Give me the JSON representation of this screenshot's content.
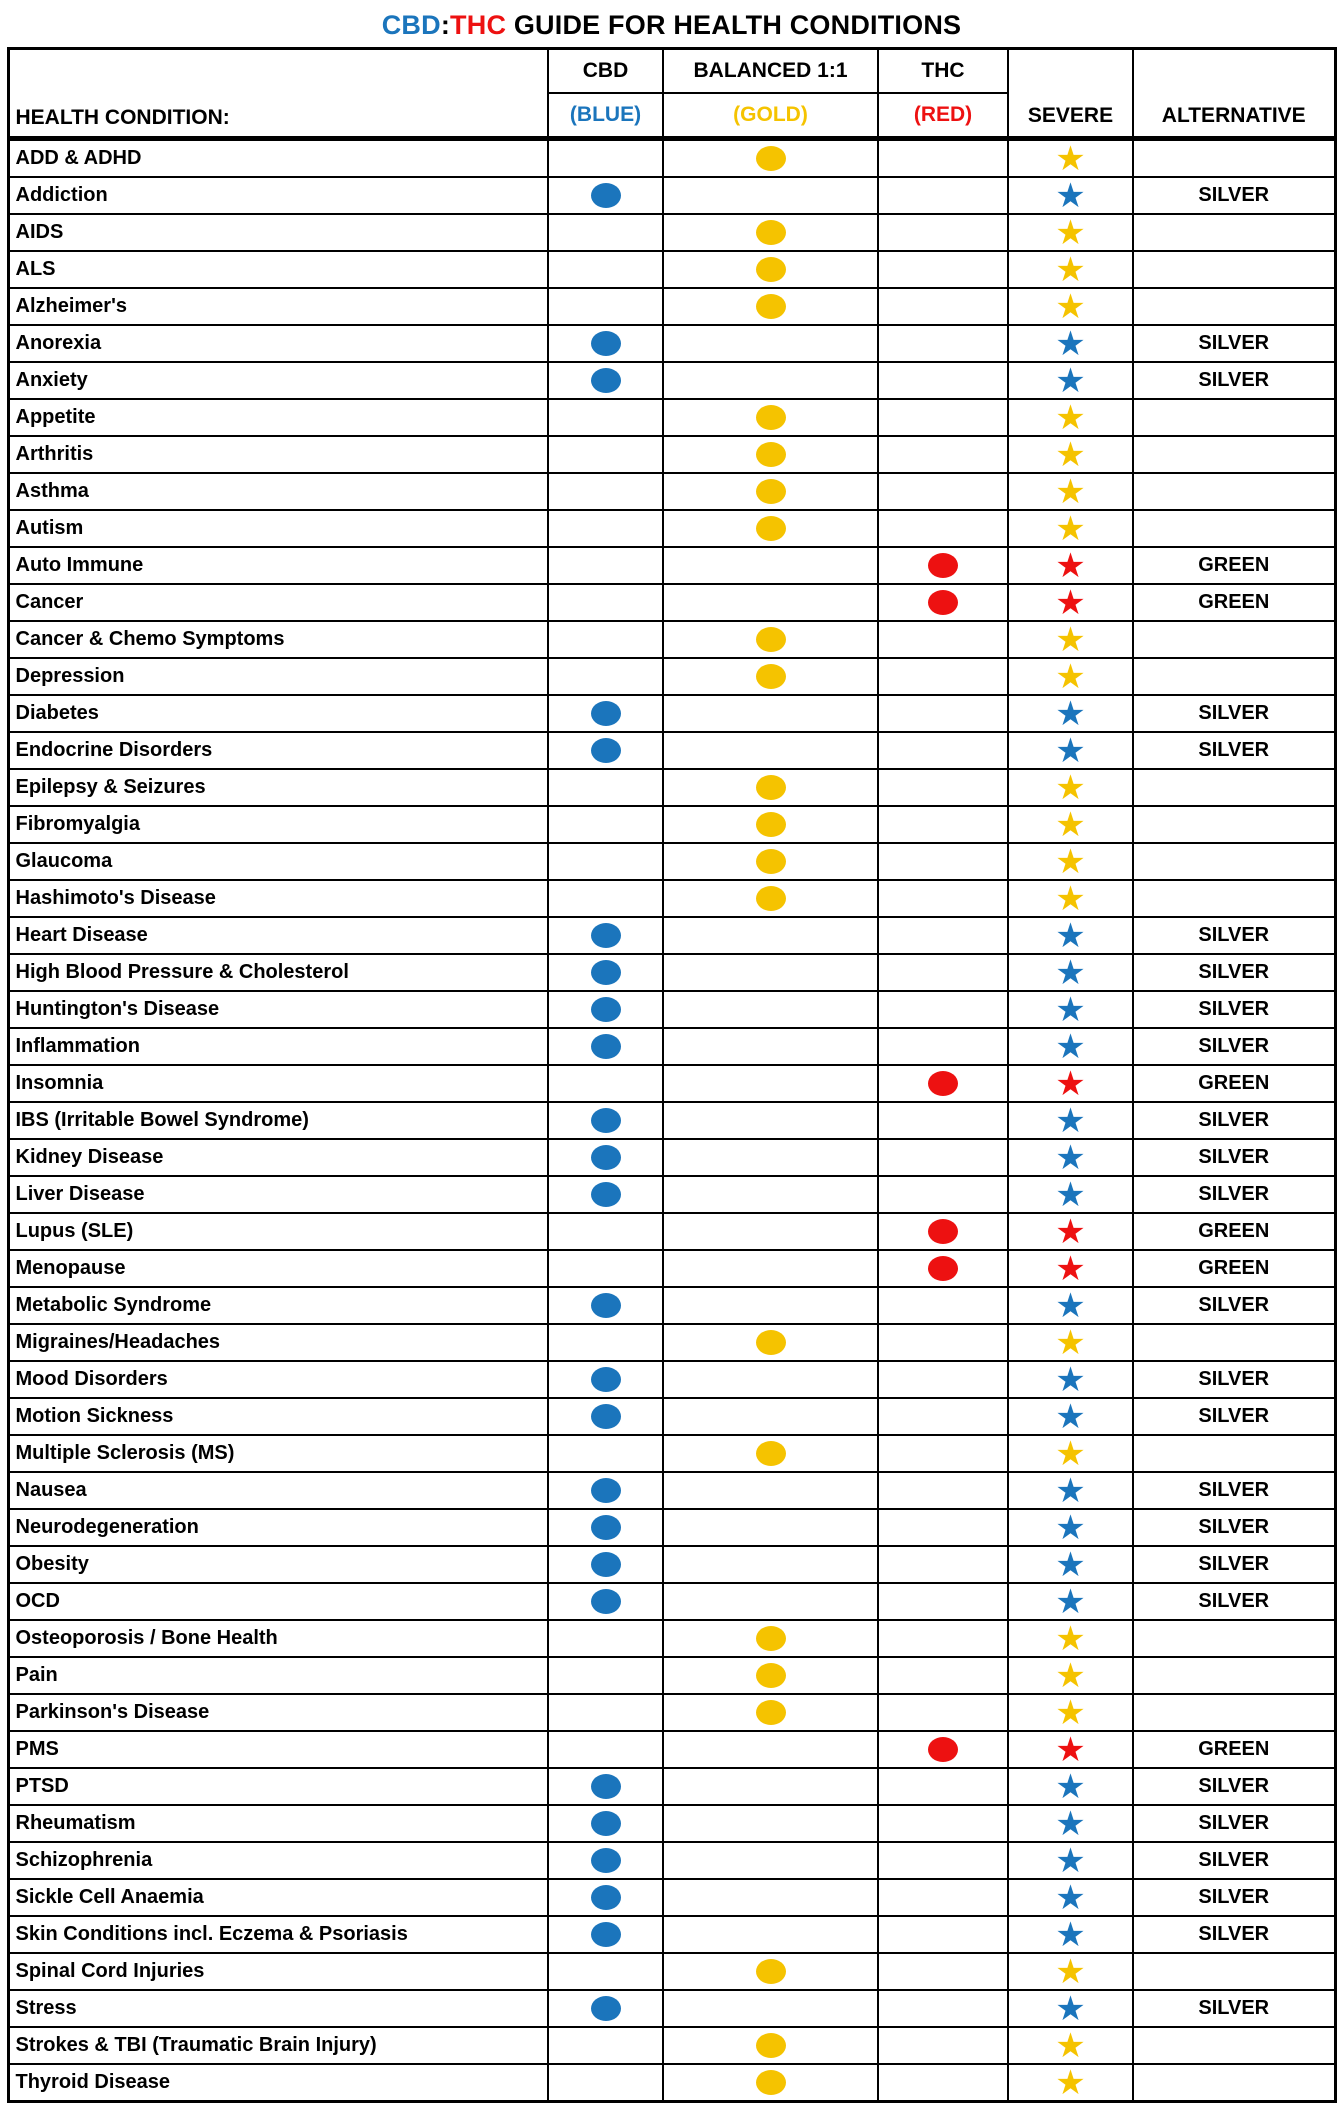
{
  "title": {
    "cbd": "CBD",
    "colon": ":",
    "thc": "THC",
    "rest": " GUIDE FOR HEALTH CONDITIONS"
  },
  "colors": {
    "blue": "#1B75BC",
    "gold": "#F5C300",
    "red": "#ED1111",
    "black": "#000000"
  },
  "icons": {
    "dot": "filled-ellipse",
    "star_glyph": "★"
  },
  "header": {
    "condition": "HEALTH CONDITION:",
    "cbd_line1": "CBD",
    "cbd_line2": "(BLUE)",
    "balanced_line1": "BALANCED 1:1",
    "balanced_line2": "(GOLD)",
    "thc_line1": "THC",
    "thc_line2": "(RED)",
    "severe": "SEVERE",
    "alternative": "ALTERNATIVE"
  },
  "chart_data": {
    "type": "table",
    "title": "CBD:THC GUIDE FOR HEALTH CONDITIONS",
    "columns": [
      "HEALTH CONDITION:",
      "CBD (BLUE)",
      "BALANCED 1:1 (GOLD)",
      "THC (RED)",
      "SEVERE",
      "ALTERNATIVE"
    ],
    "category_to_column": {
      "blue": "CBD (BLUE)",
      "gold": "BALANCED 1:1 (GOLD)",
      "red": "THC (RED)"
    },
    "rows": [
      {
        "condition": "ADD & ADHD",
        "category": "gold",
        "alternative": ""
      },
      {
        "condition": "Addiction",
        "category": "blue",
        "alternative": "SILVER"
      },
      {
        "condition": "AIDS",
        "category": "gold",
        "alternative": ""
      },
      {
        "condition": "ALS",
        "category": "gold",
        "alternative": ""
      },
      {
        "condition": "Alzheimer's",
        "category": "gold",
        "alternative": ""
      },
      {
        "condition": "Anorexia",
        "category": "blue",
        "alternative": "SILVER"
      },
      {
        "condition": "Anxiety",
        "category": "blue",
        "alternative": "SILVER"
      },
      {
        "condition": "Appetite",
        "category": "gold",
        "alternative": ""
      },
      {
        "condition": "Arthritis",
        "category": "gold",
        "alternative": ""
      },
      {
        "condition": "Asthma",
        "category": "gold",
        "alternative": ""
      },
      {
        "condition": "Autism",
        "category": "gold",
        "alternative": ""
      },
      {
        "condition": "Auto Immune",
        "category": "red",
        "alternative": "GREEN"
      },
      {
        "condition": "Cancer",
        "category": "red",
        "alternative": "GREEN"
      },
      {
        "condition": "Cancer & Chemo Symptoms",
        "category": "gold",
        "alternative": ""
      },
      {
        "condition": "Depression",
        "category": "gold",
        "alternative": ""
      },
      {
        "condition": "Diabetes",
        "category": "blue",
        "alternative": "SILVER"
      },
      {
        "condition": "Endocrine Disorders",
        "category": "blue",
        "alternative": "SILVER"
      },
      {
        "condition": "Epilepsy & Seizures",
        "category": "gold",
        "alternative": ""
      },
      {
        "condition": "Fibromyalgia",
        "category": "gold",
        "alternative": ""
      },
      {
        "condition": "Glaucoma",
        "category": "gold",
        "alternative": ""
      },
      {
        "condition": "Hashimoto's Disease",
        "category": "gold",
        "alternative": ""
      },
      {
        "condition": "Heart Disease",
        "category": "blue",
        "alternative": "SILVER"
      },
      {
        "condition": "High Blood Pressure & Cholesterol",
        "category": "blue",
        "alternative": "SILVER"
      },
      {
        "condition": "Huntington's Disease",
        "category": "blue",
        "alternative": "SILVER"
      },
      {
        "condition": "Inflammation",
        "category": "blue",
        "alternative": "SILVER"
      },
      {
        "condition": "Insomnia",
        "category": "red",
        "alternative": "GREEN"
      },
      {
        "condition": "IBS (Irritable Bowel Syndrome)",
        "category": "blue",
        "alternative": "SILVER"
      },
      {
        "condition": "Kidney Disease",
        "category": "blue",
        "alternative": "SILVER"
      },
      {
        "condition": "Liver Disease",
        "category": "blue",
        "alternative": "SILVER"
      },
      {
        "condition": "Lupus (SLE)",
        "category": "red",
        "alternative": "GREEN"
      },
      {
        "condition": "Menopause",
        "category": "red",
        "alternative": "GREEN"
      },
      {
        "condition": "Metabolic Syndrome",
        "category": "blue",
        "alternative": "SILVER"
      },
      {
        "condition": "Migraines/Headaches",
        "category": "gold",
        "alternative": ""
      },
      {
        "condition": "Mood Disorders",
        "category": "blue",
        "alternative": "SILVER"
      },
      {
        "condition": "Motion Sickness",
        "category": "blue",
        "alternative": "SILVER"
      },
      {
        "condition": "Multiple Sclerosis (MS)",
        "category": "gold",
        "alternative": ""
      },
      {
        "condition": "Nausea",
        "category": "blue",
        "alternative": "SILVER"
      },
      {
        "condition": "Neurodegeneration",
        "category": "blue",
        "alternative": "SILVER"
      },
      {
        "condition": "Obesity",
        "category": "blue",
        "alternative": "SILVER"
      },
      {
        "condition": "OCD",
        "category": "blue",
        "alternative": "SILVER"
      },
      {
        "condition": "Osteoporosis / Bone Health",
        "category": "gold",
        "alternative": ""
      },
      {
        "condition": "Pain",
        "category": "gold",
        "alternative": ""
      },
      {
        "condition": "Parkinson's Disease",
        "category": "gold",
        "alternative": ""
      },
      {
        "condition": "PMS",
        "category": "red",
        "alternative": "GREEN"
      },
      {
        "condition": "PTSD",
        "category": "blue",
        "alternative": "SILVER"
      },
      {
        "condition": "Rheumatism",
        "category": "blue",
        "alternative": "SILVER"
      },
      {
        "condition": "Schizophrenia",
        "category": "blue",
        "alternative": "SILVER"
      },
      {
        "condition": "Sickle Cell Anaemia",
        "category": "blue",
        "alternative": "SILVER"
      },
      {
        "condition": "Skin Conditions incl. Eczema & Psoriasis",
        "category": "blue",
        "alternative": "SILVER"
      },
      {
        "condition": "Spinal Cord Injuries",
        "category": "gold",
        "alternative": ""
      },
      {
        "condition": "Stress",
        "category": "blue",
        "alternative": "SILVER"
      },
      {
        "condition": "Strokes & TBI (Traumatic Brain Injury)",
        "category": "gold",
        "alternative": ""
      },
      {
        "condition": "Thyroid Disease",
        "category": "gold",
        "alternative": ""
      }
    ]
  }
}
